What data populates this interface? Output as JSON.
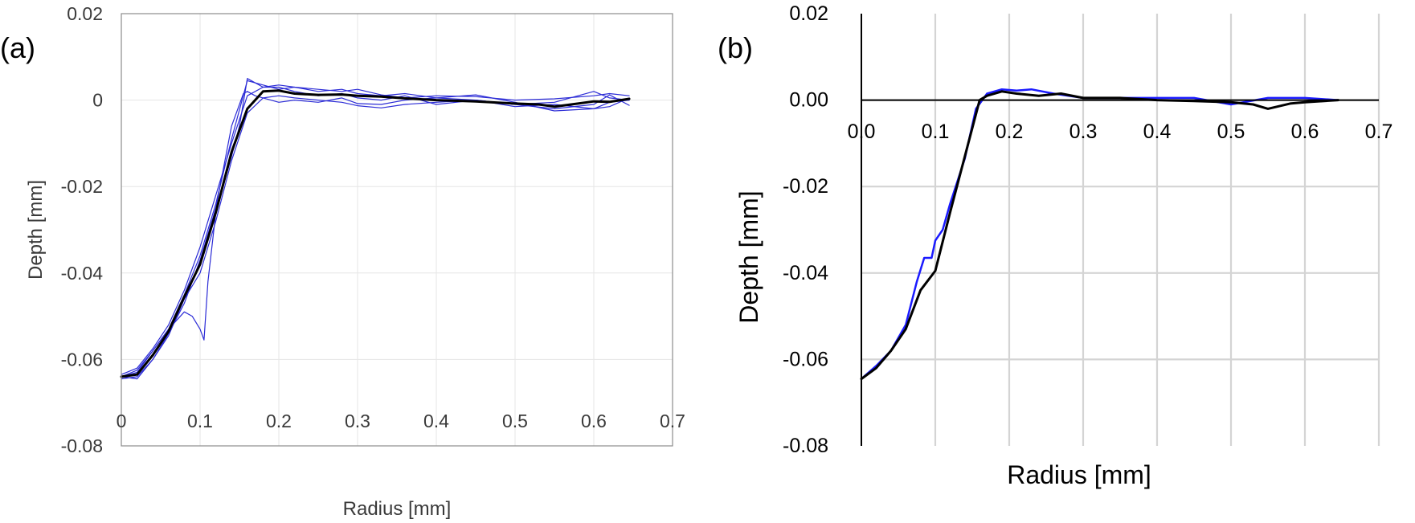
{
  "colors": {
    "mean": "#000000",
    "samples": "#2b2bd6",
    "samples_b": "#1a1aff",
    "grid_a": "#e6e6e6",
    "grid_b": "#d4d4d4",
    "axis_text_a": "#3a3a3a"
  },
  "chart_data": [
    {
      "panel_label": "(a)",
      "type": "line",
      "xlabel": "Radius [mm]",
      "ylabel": "Depth [mm]",
      "xlim": [
        0,
        0.7
      ],
      "ylim": [
        -0.08,
        0.02
      ],
      "x_ticks": [
        "0",
        "0.1",
        "0.2",
        "0.3",
        "0.4",
        "0.5",
        "0.6",
        "0.7"
      ],
      "y_ticks": [
        "0.02",
        "0",
        "-0.02",
        "-0.04",
        "-0.06",
        "-0.08"
      ],
      "grid": true,
      "series": [
        {
          "style": "mean",
          "x": [
            0,
            0.02,
            0.04,
            0.06,
            0.08,
            0.1,
            0.12,
            0.14,
            0.16,
            0.18,
            0.2,
            0.22,
            0.25,
            0.28,
            0.3,
            0.33,
            0.36,
            0.4,
            0.45,
            0.5,
            0.53,
            0.55,
            0.58,
            0.6,
            0.62,
            0.645
          ],
          "y": [
            -0.064,
            -0.0635,
            -0.059,
            -0.0535,
            -0.0455,
            -0.038,
            -0.026,
            -0.012,
            -0.002,
            0.002,
            0.0022,
            0.0015,
            0.0012,
            0.0013,
            0.001,
            0.0008,
            0.0004,
            0.0,
            -0.0003,
            -0.0008,
            -0.001,
            -0.0015,
            -0.0008,
            -0.0003,
            -0.0004,
            0.0003
          ]
        },
        {
          "style": "sample",
          "x": [
            0,
            0.02,
            0.04,
            0.06,
            0.08,
            0.1,
            0.12,
            0.14,
            0.16,
            0.18,
            0.2,
            0.22,
            0.25,
            0.28,
            0.3,
            0.33,
            0.36,
            0.4,
            0.45,
            0.5,
            0.55,
            0.6,
            0.62,
            0.645
          ],
          "y": [
            -0.064,
            -0.063,
            -0.058,
            -0.053,
            -0.045,
            -0.036,
            -0.024,
            -0.009,
            0.0045,
            0.0035,
            0.0025,
            0.003,
            0.002,
            0.0025,
            0.0015,
            0.001,
            0.0015,
            0.0005,
            0.0,
            -0.001,
            -0.0005,
            0.002,
            0.0005,
            0.0
          ]
        },
        {
          "style": "sample",
          "x": [
            0,
            0.02,
            0.04,
            0.06,
            0.08,
            0.09,
            0.1,
            0.105,
            0.11,
            0.12,
            0.14,
            0.15,
            0.16,
            0.18,
            0.2,
            0.22,
            0.25,
            0.28,
            0.3,
            0.33,
            0.36,
            0.4,
            0.45,
            0.5,
            0.55,
            0.6,
            0.62,
            0.645
          ],
          "y": [
            -0.064,
            -0.0625,
            -0.058,
            -0.053,
            -0.049,
            -0.05,
            -0.053,
            -0.0555,
            -0.042,
            -0.026,
            -0.013,
            -0.006,
            0.005,
            0.003,
            0.003,
            0.002,
            0.001,
            0.0015,
            0.0005,
            0.0,
            0.001,
            -0.001,
            0.0,
            -0.0015,
            -0.001,
            -0.002,
            -0.0005,
            0.0
          ]
        },
        {
          "style": "sample",
          "x": [
            0,
            0.02,
            0.04,
            0.06,
            0.08,
            0.1,
            0.12,
            0.14,
            0.155,
            0.16,
            0.17,
            0.18,
            0.2,
            0.22,
            0.25,
            0.28,
            0.3,
            0.33,
            0.36,
            0.4,
            0.45,
            0.5,
            0.55,
            0.6,
            0.62,
            0.645
          ],
          "y": [
            -0.0645,
            -0.064,
            -0.06,
            -0.054,
            -0.047,
            -0.037,
            -0.025,
            -0.006,
            0.0015,
            0.002,
            0.001,
            0.0005,
            -0.0005,
            0.0,
            -0.0005,
            0.0005,
            -0.0008,
            -0.001,
            0.0,
            0.0005,
            0.0012,
            -0.0005,
            -0.0025,
            -0.002,
            -0.0015,
            0.0005
          ]
        },
        {
          "style": "sample",
          "x": [
            0,
            0.02,
            0.04,
            0.06,
            0.08,
            0.1,
            0.12,
            0.14,
            0.16,
            0.18,
            0.2,
            0.22,
            0.25,
            0.28,
            0.3,
            0.33,
            0.36,
            0.4,
            0.45,
            0.5,
            0.55,
            0.6,
            0.62,
            0.645
          ],
          "y": [
            -0.064,
            -0.0645,
            -0.06,
            -0.0545,
            -0.046,
            -0.04,
            -0.028,
            -0.014,
            -0.003,
            0.0005,
            0.001,
            0.0005,
            0.0,
            -0.0005,
            -0.0013,
            -0.0018,
            -0.001,
            -0.0005,
            0.0,
            -0.001,
            -0.002,
            -0.001,
            0.0012,
            -0.0012
          ]
        },
        {
          "style": "sample",
          "x": [
            0,
            0.02,
            0.04,
            0.06,
            0.08,
            0.1,
            0.12,
            0.14,
            0.16,
            0.18,
            0.2,
            0.22,
            0.25,
            0.28,
            0.3,
            0.33,
            0.36,
            0.4,
            0.45,
            0.5,
            0.55,
            0.6,
            0.62,
            0.645
          ],
          "y": [
            -0.0635,
            -0.062,
            -0.0575,
            -0.052,
            -0.044,
            -0.034,
            -0.022,
            -0.01,
            0.001,
            0.003,
            0.0035,
            0.003,
            0.0025,
            0.002,
            0.0025,
            0.0012,
            0.0005,
            0.001,
            0.0008,
            0.0,
            0.0003,
            0.001,
            0.0015,
            0.001
          ]
        }
      ]
    },
    {
      "panel_label": "(b)",
      "type": "line",
      "xlabel": "Radius [mm]",
      "ylabel": "Depth [mm]",
      "xlim": [
        0,
        0.7
      ],
      "ylim": [
        -0.08,
        0.02
      ],
      "x_ticks": [
        "0.0",
        "0.1",
        "0.2",
        "0.3",
        "0.4",
        "0.5",
        "0.6",
        "0.7"
      ],
      "y_ticks": [
        "0.02",
        "0.00",
        "-0.02",
        "-0.04",
        "-0.06",
        "-0.08"
      ],
      "grid": true,
      "series": [
        {
          "style": "sample",
          "x": [
            0,
            0.02,
            0.04,
            0.06,
            0.075,
            0.085,
            0.095,
            0.1,
            0.11,
            0.12,
            0.14,
            0.155,
            0.17,
            0.19,
            0.21,
            0.23,
            0.26,
            0.3,
            0.35,
            0.4,
            0.45,
            0.5,
            0.55,
            0.6,
            0.645
          ],
          "y": [
            -0.0645,
            -0.0615,
            -0.058,
            -0.052,
            -0.042,
            -0.0365,
            -0.0365,
            -0.0325,
            -0.03,
            -0.024,
            -0.0135,
            -0.002,
            0.0015,
            0.0025,
            0.0022,
            0.0025,
            0.0015,
            0.0005,
            0.0005,
            0.0005,
            0.0005,
            -0.001,
            0.0005,
            0.0005,
            0.0
          ]
        },
        {
          "style": "mean",
          "x": [
            0,
            0.02,
            0.04,
            0.06,
            0.08,
            0.1,
            0.12,
            0.14,
            0.16,
            0.17,
            0.19,
            0.21,
            0.24,
            0.27,
            0.3,
            0.35,
            0.4,
            0.45,
            0.5,
            0.53,
            0.55,
            0.58,
            0.6,
            0.645
          ],
          "y": [
            -0.0645,
            -0.062,
            -0.058,
            -0.053,
            -0.044,
            -0.0395,
            -0.026,
            -0.013,
            0.0,
            0.001,
            0.002,
            0.0015,
            0.001,
            0.0015,
            0.0005,
            0.0005,
            0.0,
            -0.0002,
            -0.0005,
            -0.001,
            -0.002,
            -0.0008,
            -0.0005,
            0.0
          ]
        }
      ]
    }
  ]
}
